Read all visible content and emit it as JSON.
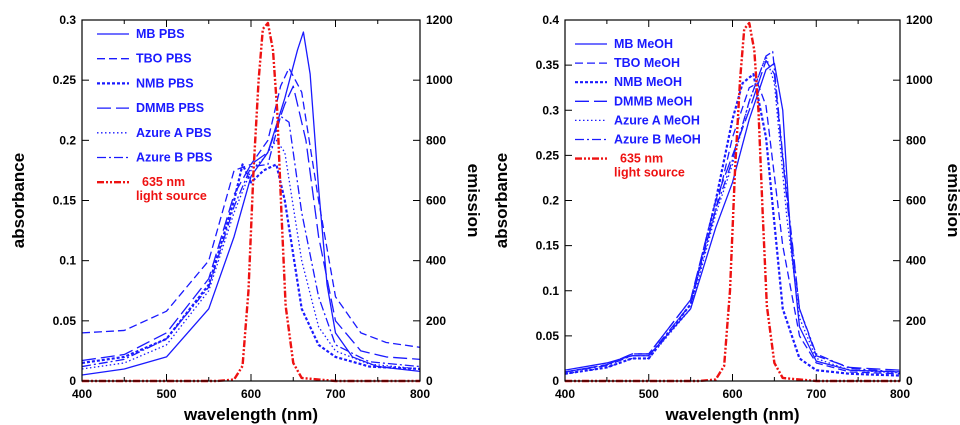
{
  "colors": {
    "blue": "#1a1aff",
    "red": "#ee1111",
    "axis": "#000000"
  },
  "chart_data": [
    {
      "type": "line",
      "title": "",
      "xlabel": "wavelength (nm)",
      "ylabel": "absorbance",
      "y2label": "emission",
      "xlim": [
        400,
        800
      ],
      "ylim": [
        0,
        0.3
      ],
      "y2lim": [
        0,
        1200
      ],
      "xticks": [
        "400",
        "500",
        "600",
        "700",
        "800"
      ],
      "yticks": [
        "0",
        "0.05",
        "0.1",
        "0.15",
        "0.2",
        "0.25",
        "0.3"
      ],
      "y2ticks": [
        "0",
        "200",
        "400",
        "600",
        "800",
        "1000",
        "1200"
      ],
      "legend_position": "top-left",
      "series": [
        {
          "name": "MB PBS",
          "style": "solid",
          "x": [
            400,
            450,
            500,
            550,
            580,
            600,
            620,
            640,
            655,
            662,
            670,
            680,
            690,
            700,
            720,
            750,
            800
          ],
          "y": [
            0.005,
            0.01,
            0.02,
            0.06,
            0.12,
            0.17,
            0.19,
            0.235,
            0.275,
            0.29,
            0.255,
            0.16,
            0.08,
            0.04,
            0.02,
            0.012,
            0.008
          ]
        },
        {
          "name": "TBO PBS",
          "style": "dash",
          "x": [
            400,
            450,
            500,
            550,
            580,
            600,
            620,
            635,
            645,
            660,
            680,
            700,
            730,
            760,
            800
          ],
          "y": [
            0.04,
            0.042,
            0.058,
            0.1,
            0.175,
            0.18,
            0.2,
            0.245,
            0.26,
            0.24,
            0.15,
            0.07,
            0.04,
            0.032,
            0.028
          ]
        },
        {
          "name": "NMB PBS",
          "style": "dot",
          "x": [
            400,
            450,
            500,
            550,
            580,
            590,
            600,
            615,
            630,
            640,
            660,
            680,
            700,
            740,
            800
          ],
          "y": [
            0.015,
            0.02,
            0.035,
            0.08,
            0.15,
            0.18,
            0.165,
            0.175,
            0.18,
            0.15,
            0.06,
            0.03,
            0.02,
            0.012,
            0.01
          ]
        },
        {
          "name": "DMMB PBS",
          "style": "longdash",
          "x": [
            400,
            450,
            500,
            550,
            580,
            600,
            620,
            640,
            650,
            665,
            680,
            700,
            730,
            760,
            800
          ],
          "y": [
            0.017,
            0.022,
            0.04,
            0.085,
            0.155,
            0.18,
            0.19,
            0.23,
            0.245,
            0.2,
            0.12,
            0.05,
            0.025,
            0.02,
            0.018
          ]
        },
        {
          "name": "Azure A PBS",
          "style": "finedot",
          "x": [
            400,
            450,
            500,
            550,
            580,
            600,
            615,
            630,
            640,
            660,
            680,
            700,
            740,
            800
          ],
          "y": [
            0.01,
            0.015,
            0.03,
            0.075,
            0.14,
            0.175,
            0.185,
            0.2,
            0.19,
            0.1,
            0.045,
            0.025,
            0.014,
            0.01
          ]
        },
        {
          "name": "Azure B PBS",
          "style": "dashdot",
          "x": [
            400,
            450,
            500,
            550,
            580,
            600,
            620,
            635,
            645,
            660,
            680,
            700,
            740,
            800
          ],
          "y": [
            0.012,
            0.018,
            0.035,
            0.078,
            0.145,
            0.178,
            0.18,
            0.22,
            0.215,
            0.14,
            0.07,
            0.03,
            0.016,
            0.012
          ]
        },
        {
          "name": "635 nm\nlight source",
          "style": "red-dashdotdot",
          "axis": "right",
          "x": [
            400,
            560,
            580,
            590,
            597,
            603,
            609,
            614,
            620,
            626,
            631,
            636,
            641,
            650,
            660,
            700,
            800
          ],
          "y": [
            0,
            0,
            5,
            50,
            300,
            700,
            1000,
            1170,
            1190,
            1100,
            900,
            560,
            250,
            60,
            10,
            0,
            0
          ]
        }
      ]
    },
    {
      "type": "line",
      "title": "",
      "xlabel": "wavelength (nm)",
      "ylabel": "absorbance",
      "y2label": "emission",
      "xlim": [
        400,
        800
      ],
      "ylim": [
        0,
        0.4
      ],
      "y2lim": [
        0,
        1200
      ],
      "xticks": [
        "400",
        "500",
        "600",
        "700",
        "800"
      ],
      "yticks": [
        "0",
        "0.05",
        "0.1",
        "0.15",
        "0.2",
        "0.25",
        "0.3",
        "0.35",
        "0.4"
      ],
      "y2ticks": [
        "0",
        "200",
        "400",
        "600",
        "800",
        "1000",
        "1200"
      ],
      "legend_position": "top-left",
      "series": [
        {
          "name": "MB MeOH",
          "style": "solid",
          "x": [
            400,
            450,
            480,
            500,
            550,
            580,
            600,
            620,
            640,
            650,
            660,
            670,
            680,
            700,
            740,
            800
          ],
          "y": [
            0.012,
            0.02,
            0.028,
            0.028,
            0.08,
            0.17,
            0.22,
            0.29,
            0.345,
            0.352,
            0.3,
            0.15,
            0.06,
            0.022,
            0.012,
            0.01
          ]
        },
        {
          "name": "TBO MeOH",
          "style": "dash",
          "x": [
            400,
            450,
            480,
            500,
            550,
            580,
            600,
            620,
            630,
            640,
            660,
            680,
            700,
            740,
            800
          ],
          "y": [
            0.01,
            0.018,
            0.03,
            0.03,
            0.09,
            0.19,
            0.27,
            0.325,
            0.33,
            0.305,
            0.15,
            0.05,
            0.02,
            0.01,
            0.008
          ]
        },
        {
          "name": "NMB MeOH",
          "style": "dot",
          "x": [
            400,
            450,
            480,
            500,
            550,
            580,
            600,
            612,
            625,
            640,
            660,
            680,
            700,
            740,
            800
          ],
          "y": [
            0.008,
            0.015,
            0.025,
            0.025,
            0.085,
            0.2,
            0.29,
            0.33,
            0.34,
            0.27,
            0.08,
            0.025,
            0.012,
            0.008,
            0.006
          ]
        },
        {
          "name": "DMMB MeOH",
          "style": "longdash",
          "x": [
            400,
            450,
            480,
            500,
            550,
            580,
            600,
            620,
            640,
            650,
            665,
            680,
            700,
            740,
            800
          ],
          "y": [
            0.01,
            0.018,
            0.03,
            0.03,
            0.09,
            0.2,
            0.25,
            0.3,
            0.355,
            0.34,
            0.2,
            0.08,
            0.028,
            0.015,
            0.012
          ]
        },
        {
          "name": "Azure A MeOH",
          "style": "finedot",
          "x": [
            400,
            450,
            480,
            500,
            550,
            580,
            600,
            620,
            640,
            650,
            665,
            680,
            700,
            740,
            800
          ],
          "y": [
            0.008,
            0.015,
            0.025,
            0.025,
            0.08,
            0.185,
            0.24,
            0.31,
            0.36,
            0.33,
            0.18,
            0.07,
            0.025,
            0.012,
            0.009
          ]
        },
        {
          "name": "Azure B MeOH",
          "style": "dashdot",
          "x": [
            400,
            450,
            480,
            500,
            550,
            580,
            600,
            620,
            640,
            648,
            660,
            680,
            700,
            740,
            800
          ],
          "y": [
            0.01,
            0.017,
            0.028,
            0.028,
            0.085,
            0.19,
            0.245,
            0.31,
            0.36,
            0.365,
            0.25,
            0.08,
            0.03,
            0.014,
            0.01
          ]
        },
        {
          "name": "635 nm\nlight source",
          "style": "red-dashdotdot",
          "axis": "right",
          "x": [
            400,
            560,
            580,
            590,
            597,
            603,
            609,
            614,
            620,
            626,
            631,
            636,
            641,
            650,
            660,
            700,
            800
          ],
          "y": [
            0,
            0,
            5,
            50,
            300,
            700,
            1000,
            1170,
            1190,
            1100,
            900,
            560,
            250,
            60,
            10,
            0,
            0
          ]
        }
      ]
    }
  ]
}
